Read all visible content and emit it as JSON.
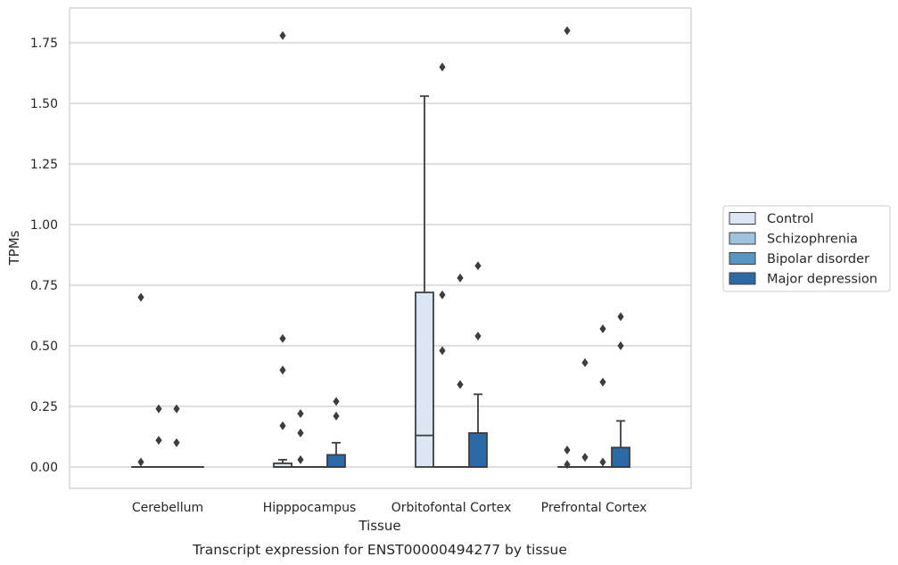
{
  "chart_data": {
    "type": "boxplot",
    "title": "",
    "xlabel": "Tissue",
    "ylabel": "TPMs",
    "caption": "Transcript expression for ENST00000494277 by tissue",
    "ylim": [
      -0.09,
      1.89
    ],
    "yticks": [
      0.0,
      0.25,
      0.5,
      0.75,
      1.0,
      1.25,
      1.5,
      1.75
    ],
    "ytick_labels": [
      "0.00",
      "0.25",
      "0.50",
      "0.75",
      "1.00",
      "1.25",
      "1.50",
      "1.75"
    ],
    "grid": "horizontal",
    "legend_position": "right",
    "categories": [
      "Cerebellum",
      "Hipppocampus",
      "Orbitofontal Cortex",
      "Prefrontal Cortex"
    ],
    "series": [
      {
        "name": "Control",
        "color": "#dbe7f4",
        "boxes": [
          {
            "q1": 0.0,
            "median": 0.0,
            "q3": 0.0,
            "whisker_low": 0.0,
            "whisker_high": 0.0,
            "outliers": [
              0.02,
              0.7
            ]
          },
          {
            "q1": 0.0,
            "median": 0.0,
            "q3": 0.015,
            "whisker_low": 0.0,
            "whisker_high": 0.03,
            "outliers": [
              0.17,
              0.4,
              0.53,
              1.78
            ]
          },
          {
            "q1": 0.0,
            "median": 0.13,
            "q3": 0.72,
            "whisker_low": 0.0,
            "whisker_high": 1.53,
            "outliers": []
          },
          {
            "q1": 0.0,
            "median": 0.0,
            "q3": 0.0,
            "whisker_low": 0.0,
            "whisker_high": 0.0,
            "outliers": [
              0.01,
              0.07,
              1.8
            ]
          }
        ]
      },
      {
        "name": "Schizophrenia",
        "color": "#a0c3dd",
        "boxes": [
          {
            "q1": 0.0,
            "median": 0.0,
            "q3": 0.0,
            "whisker_low": 0.0,
            "whisker_high": 0.0,
            "outliers": [
              0.11,
              0.24
            ]
          },
          {
            "q1": 0.0,
            "median": 0.0,
            "q3": 0.0,
            "whisker_low": 0.0,
            "whisker_high": 0.0,
            "outliers": [
              0.03,
              0.14,
              0.22
            ]
          },
          {
            "q1": 0.0,
            "median": 0.0,
            "q3": 0.0,
            "whisker_low": 0.0,
            "whisker_high": 0.0,
            "outliers": [
              0.48,
              0.71,
              1.65
            ]
          },
          {
            "q1": 0.0,
            "median": 0.0,
            "q3": 0.0,
            "whisker_low": 0.0,
            "whisker_high": 0.0,
            "outliers": [
              0.04,
              0.43
            ]
          }
        ]
      },
      {
        "name": "Bipolar disorder",
        "color": "#5596c4",
        "boxes": [
          {
            "q1": 0.0,
            "median": 0.0,
            "q3": 0.0,
            "whisker_low": 0.0,
            "whisker_high": 0.0,
            "outliers": [
              0.1,
              0.24
            ]
          },
          {
            "q1": 0.0,
            "median": 0.0,
            "q3": 0.0,
            "whisker_low": 0.0,
            "whisker_high": 0.0,
            "outliers": []
          },
          {
            "q1": 0.0,
            "median": 0.0,
            "q3": 0.0,
            "whisker_low": 0.0,
            "whisker_high": 0.0,
            "outliers": [
              0.34,
              0.78
            ]
          },
          {
            "q1": 0.0,
            "median": 0.0,
            "q3": 0.0,
            "whisker_low": 0.0,
            "whisker_high": 0.0,
            "outliers": [
              0.02,
              0.35,
              0.57
            ]
          }
        ]
      },
      {
        "name": "Major depression",
        "color": "#2b6aa6",
        "boxes": [
          {
            "q1": 0.0,
            "median": 0.0,
            "q3": 0.0,
            "whisker_low": 0.0,
            "whisker_high": 0.0,
            "outliers": []
          },
          {
            "q1": 0.0,
            "median": 0.0,
            "q3": 0.05,
            "whisker_low": 0.0,
            "whisker_high": 0.1,
            "outliers": [
              0.21,
              0.27
            ]
          },
          {
            "q1": 0.0,
            "median": 0.0,
            "q3": 0.14,
            "whisker_low": 0.0,
            "whisker_high": 0.3,
            "outliers": [
              0.54,
              0.83
            ]
          },
          {
            "q1": 0.0,
            "median": 0.0,
            "q3": 0.08,
            "whisker_low": 0.0,
            "whisker_high": 0.19,
            "outliers": [
              0.5,
              0.62
            ]
          }
        ]
      }
    ]
  }
}
